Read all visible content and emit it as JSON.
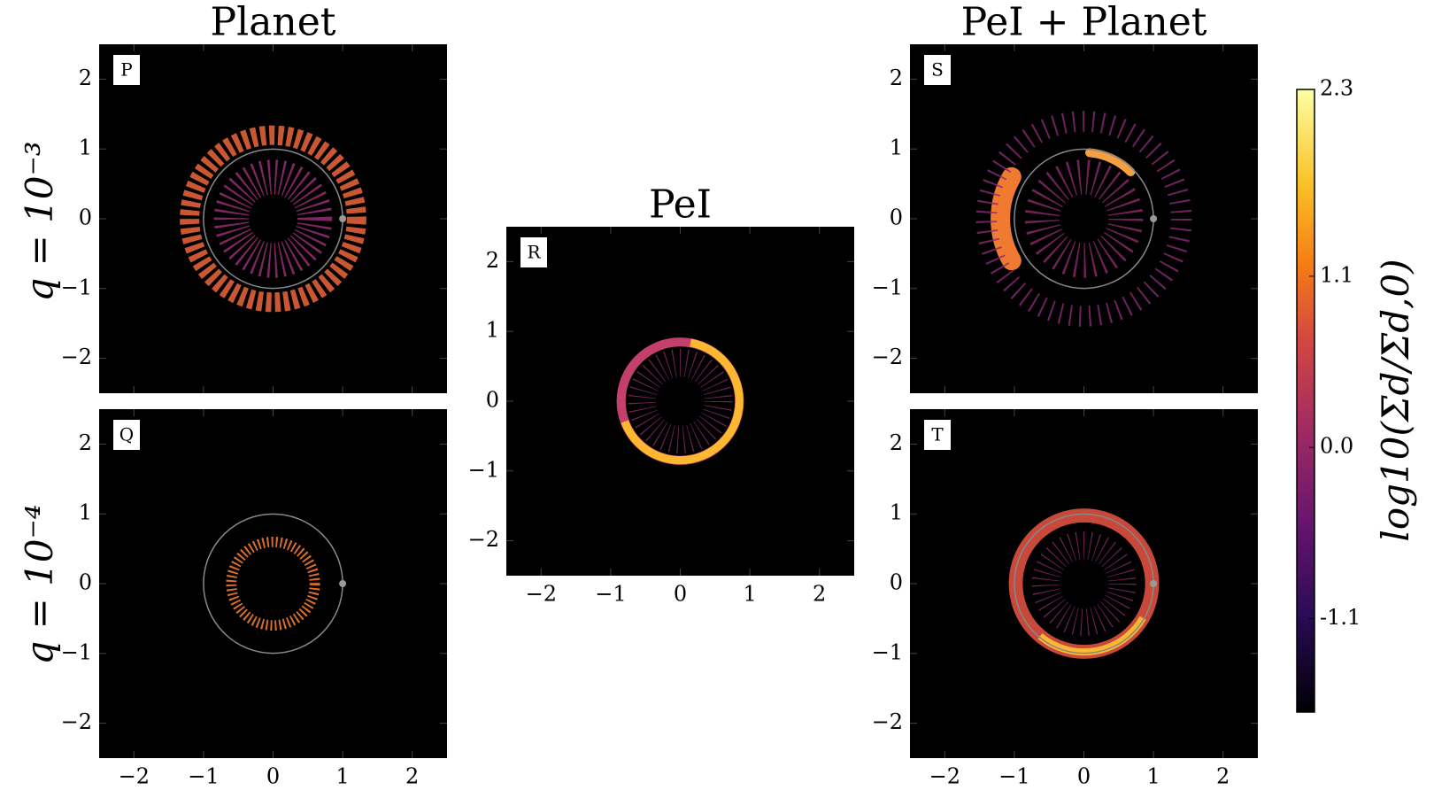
{
  "chart_data": [
    {
      "type": "heatmap",
      "title": "Planet",
      "label": "P",
      "xlim": [
        -2.5,
        2.5
      ],
      "ylim": [
        -2.5,
        2.5
      ],
      "xticks": [
        -2,
        -1,
        0,
        1,
        2
      ],
      "show_xtick_labels": false,
      "yticks": [
        {
          "value": -2,
          "label": "−2"
        },
        {
          "value": -1,
          "label": "−1"
        },
        0,
        1,
        2
      ]
    },
    {
      "type": "heatmap",
      "label": "Q",
      "xlim": [
        -2.5,
        2.5
      ],
      "ylim": [
        -2.5,
        2.5
      ],
      "xticks": [
        {
          "value": -2,
          "label": "−2"
        },
        {
          "value": -1,
          "label": "−1"
        },
        0,
        1,
        2
      ],
      "show_xtick_labels": true,
      "yticks": [
        {
          "value": -2,
          "label": "−2"
        },
        {
          "value": -1,
          "label": "−1"
        },
        0,
        1,
        2
      ]
    },
    {
      "type": "heatmap",
      "title": "PeI",
      "label": "R",
      "xlim": [
        -2.5,
        2.5
      ],
      "ylim": [
        -2.5,
        2.5
      ],
      "xticks": [
        {
          "value": -2,
          "label": "−2"
        },
        {
          "value": -1,
          "label": "−1"
        },
        0,
        1,
        2
      ],
      "show_xtick_labels": true,
      "yticks": [
        {
          "value": -2,
          "label": "−2"
        },
        {
          "value": -1,
          "label": "−1"
        },
        0,
        1,
        2
      ]
    },
    {
      "type": "heatmap",
      "title": "PeI + Planet",
      "label": "S",
      "xlim": [
        -2.5,
        2.5
      ],
      "ylim": [
        -2.5,
        2.5
      ],
      "xticks": [
        -2,
        -1,
        0,
        1,
        2
      ],
      "show_xtick_labels": false,
      "yticks": [
        {
          "value": -2,
          "label": "−2"
        },
        {
          "value": -1,
          "label": "−1"
        },
        0,
        1,
        2
      ]
    },
    {
      "type": "heatmap",
      "label": "T",
      "xlim": [
        -2.5,
        2.5
      ],
      "ylim": [
        -2.5,
        2.5
      ],
      "xticks": [
        {
          "value": -2,
          "label": "−2"
        },
        {
          "value": -1,
          "label": "−1"
        },
        0,
        1,
        2
      ],
      "show_xtick_labels": true,
      "yticks": [
        {
          "value": -2,
          "label": "−2"
        },
        {
          "value": -1,
          "label": "−1"
        },
        0,
        1,
        2
      ]
    },
    {
      "type": "colorbar",
      "title": "log10(Σd/Σd,0)",
      "lim": [
        -1.7,
        2.3
      ],
      "ticks": [
        2.3,
        1.1,
        {
          "value": 0,
          "label": "0.0"
        },
        -1.1
      ]
    }
  ],
  "row_labels": [
    "q = 10⁻³",
    "q = 10⁻⁴"
  ]
}
